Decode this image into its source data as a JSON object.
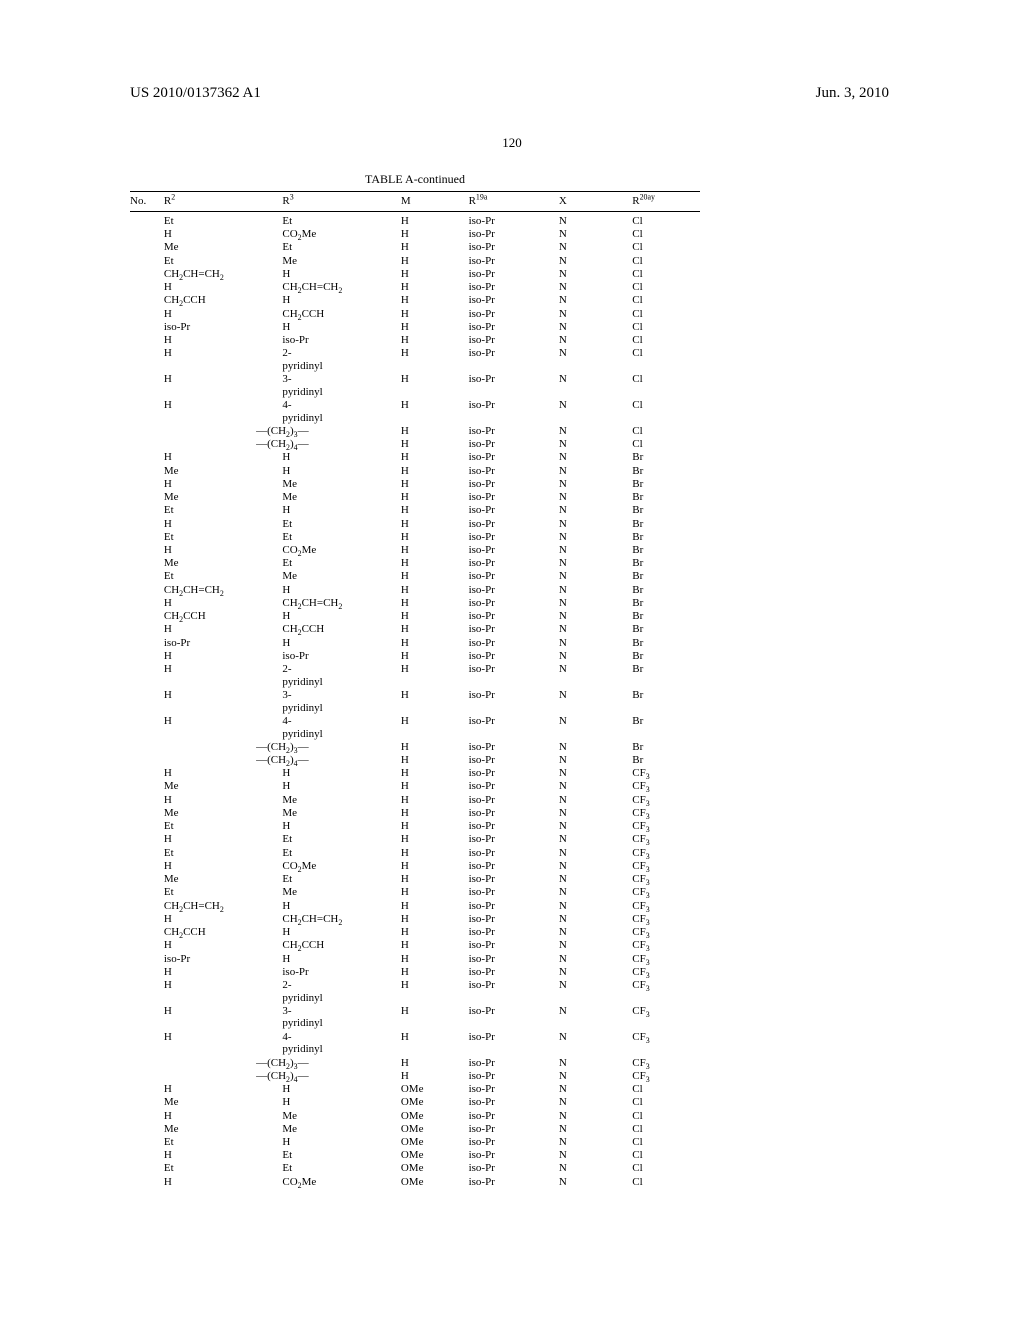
{
  "header": {
    "pub_id": "US 2010/0137362 A1",
    "pub_date": "Jun. 3, 2010",
    "page_number": "120"
  },
  "table": {
    "title": "TABLE A-continued",
    "columns": {
      "no": "No.",
      "r2": "R",
      "r2_sup": "2",
      "r3": "R",
      "r3_sup": "3",
      "m": "M",
      "r19_pre": "R",
      "r19_sup": "19a",
      "x": "X",
      "r20_pre": "R",
      "r20_sup": "20ay"
    },
    "rows": [
      {
        "r2": "Et",
        "r3": "Et",
        "m": "H",
        "r19": "iso-Pr",
        "x": "N",
        "r20": "Cl"
      },
      {
        "r2": "H",
        "r3": "CO<sub>2</sub>Me",
        "m": "H",
        "r19": "iso-Pr",
        "x": "N",
        "r20": "Cl"
      },
      {
        "r2": "Me",
        "r3": "Et",
        "m": "H",
        "r19": "iso-Pr",
        "x": "N",
        "r20": "Cl"
      },
      {
        "r2": "Et",
        "r3": "Me",
        "m": "H",
        "r19": "iso-Pr",
        "x": "N",
        "r20": "Cl"
      },
      {
        "r2": "CH<sub>2</sub>CH&#61;CH<sub>2</sub>",
        "r3": "H",
        "m": "H",
        "r19": "iso-Pr",
        "x": "N",
        "r20": "Cl"
      },
      {
        "r2": "H",
        "r3": "CH<sub>2</sub>CH&#61;CH<sub>2</sub>",
        "m": "H",
        "r19": "iso-Pr",
        "x": "N",
        "r20": "Cl"
      },
      {
        "r2": "CH<sub>2</sub>CCH",
        "r3": "H",
        "m": "H",
        "r19": "iso-Pr",
        "x": "N",
        "r20": "Cl"
      },
      {
        "r2": "H",
        "r3": "CH<sub>2</sub>CCH",
        "m": "H",
        "r19": "iso-Pr",
        "x": "N",
        "r20": "Cl"
      },
      {
        "r2": "iso-Pr",
        "r3": "H",
        "m": "H",
        "r19": "iso-Pr",
        "x": "N",
        "r20": "Cl"
      },
      {
        "r2": "H",
        "r3": "iso-Pr",
        "m": "H",
        "r19": "iso-Pr",
        "x": "N",
        "r20": "Cl"
      },
      {
        "r2": "H",
        "r3": "2-<br>pyridinyl",
        "m": "H",
        "r19": "iso-Pr",
        "x": "N",
        "r20": "Cl"
      },
      {
        "r2": "H",
        "r3": "3-<br>pyridinyl",
        "m": "H",
        "r19": "iso-Pr",
        "x": "N",
        "r20": "Cl"
      },
      {
        "r2": "H",
        "r3": "4-<br>pyridinyl",
        "m": "H",
        "r19": "iso-Pr",
        "x": "N",
        "r20": "Cl"
      },
      {
        "span23": "&mdash;(CH<sub>2</sub>)<sub>3</sub>&mdash;",
        "m": "H",
        "r19": "iso-Pr",
        "x": "N",
        "r20": "Cl"
      },
      {
        "span23": "&mdash;(CH<sub>2</sub>)<sub>4</sub>&mdash;",
        "m": "H",
        "r19": "iso-Pr",
        "x": "N",
        "r20": "Cl"
      },
      {
        "r2": "H",
        "r3": "H",
        "m": "H",
        "r19": "iso-Pr",
        "x": "N",
        "r20": "Br"
      },
      {
        "r2": "Me",
        "r3": "H",
        "m": "H",
        "r19": "iso-Pr",
        "x": "N",
        "r20": "Br"
      },
      {
        "r2": "H",
        "r3": "Me",
        "m": "H",
        "r19": "iso-Pr",
        "x": "N",
        "r20": "Br"
      },
      {
        "r2": "Me",
        "r3": "Me",
        "m": "H",
        "r19": "iso-Pr",
        "x": "N",
        "r20": "Br"
      },
      {
        "r2": "Et",
        "r3": "H",
        "m": "H",
        "r19": "iso-Pr",
        "x": "N",
        "r20": "Br"
      },
      {
        "r2": "H",
        "r3": "Et",
        "m": "H",
        "r19": "iso-Pr",
        "x": "N",
        "r20": "Br"
      },
      {
        "r2": "Et",
        "r3": "Et",
        "m": "H",
        "r19": "iso-Pr",
        "x": "N",
        "r20": "Br"
      },
      {
        "r2": "H",
        "r3": "CO<sub>2</sub>Me",
        "m": "H",
        "r19": "iso-Pr",
        "x": "N",
        "r20": "Br"
      },
      {
        "r2": "Me",
        "r3": "Et",
        "m": "H",
        "r19": "iso-Pr",
        "x": "N",
        "r20": "Br"
      },
      {
        "r2": "Et",
        "r3": "Me",
        "m": "H",
        "r19": "iso-Pr",
        "x": "N",
        "r20": "Br"
      },
      {
        "r2": "CH<sub>2</sub>CH&#61;CH<sub>2</sub>",
        "r3": "H",
        "m": "H",
        "r19": "iso-Pr",
        "x": "N",
        "r20": "Br"
      },
      {
        "r2": "H",
        "r3": "CH<sub>2</sub>CH&#61;CH<sub>2</sub>",
        "m": "H",
        "r19": "iso-Pr",
        "x": "N",
        "r20": "Br"
      },
      {
        "r2": "CH<sub>2</sub>CCH",
        "r3": "H",
        "m": "H",
        "r19": "iso-Pr",
        "x": "N",
        "r20": "Br"
      },
      {
        "r2": "H",
        "r3": "CH<sub>2</sub>CCH",
        "m": "H",
        "r19": "iso-Pr",
        "x": "N",
        "r20": "Br"
      },
      {
        "r2": "iso-Pr",
        "r3": "H",
        "m": "H",
        "r19": "iso-Pr",
        "x": "N",
        "r20": "Br"
      },
      {
        "r2": "H",
        "r3": "iso-Pr",
        "m": "H",
        "r19": "iso-Pr",
        "x": "N",
        "r20": "Br"
      },
      {
        "r2": "H",
        "r3": "2-<br>pyridinyl",
        "m": "H",
        "r19": "iso-Pr",
        "x": "N",
        "r20": "Br"
      },
      {
        "r2": "H",
        "r3": "3-<br>pyridinyl",
        "m": "H",
        "r19": "iso-Pr",
        "x": "N",
        "r20": "Br"
      },
      {
        "r2": "H",
        "r3": "4-<br>pyridinyl",
        "m": "H",
        "r19": "iso-Pr",
        "x": "N",
        "r20": "Br"
      },
      {
        "span23": "&mdash;(CH<sub>2</sub>)<sub>3</sub>&mdash;",
        "m": "H",
        "r19": "iso-Pr",
        "x": "N",
        "r20": "Br"
      },
      {
        "span23": "&mdash;(CH<sub>2</sub>)<sub>4</sub>&mdash;",
        "m": "H",
        "r19": "iso-Pr",
        "x": "N",
        "r20": "Br"
      },
      {
        "r2": "H",
        "r3": "H",
        "m": "H",
        "r19": "iso-Pr",
        "x": "N",
        "r20": "CF<sub>3</sub>"
      },
      {
        "r2": "Me",
        "r3": "H",
        "m": "H",
        "r19": "iso-Pr",
        "x": "N",
        "r20": "CF<sub>3</sub>"
      },
      {
        "r2": "H",
        "r3": "Me",
        "m": "H",
        "r19": "iso-Pr",
        "x": "N",
        "r20": "CF<sub>3</sub>"
      },
      {
        "r2": "Me",
        "r3": "Me",
        "m": "H",
        "r19": "iso-Pr",
        "x": "N",
        "r20": "CF<sub>3</sub>"
      },
      {
        "r2": "Et",
        "r3": "H",
        "m": "H",
        "r19": "iso-Pr",
        "x": "N",
        "r20": "CF<sub>3</sub>"
      },
      {
        "r2": "H",
        "r3": "Et",
        "m": "H",
        "r19": "iso-Pr",
        "x": "N",
        "r20": "CF<sub>3</sub>"
      },
      {
        "r2": "Et",
        "r3": "Et",
        "m": "H",
        "r19": "iso-Pr",
        "x": "N",
        "r20": "CF<sub>3</sub>"
      },
      {
        "r2": "H",
        "r3": "CO<sub>2</sub>Me",
        "m": "H",
        "r19": "iso-Pr",
        "x": "N",
        "r20": "CF<sub>3</sub>"
      },
      {
        "r2": "Me",
        "r3": "Et",
        "m": "H",
        "r19": "iso-Pr",
        "x": "N",
        "r20": "CF<sub>3</sub>"
      },
      {
        "r2": "Et",
        "r3": "Me",
        "m": "H",
        "r19": "iso-Pr",
        "x": "N",
        "r20": "CF<sub>3</sub>"
      },
      {
        "r2": "CH<sub>2</sub>CH&#61;CH<sub>2</sub>",
        "r3": "H",
        "m": "H",
        "r19": "iso-Pr",
        "x": "N",
        "r20": "CF<sub>3</sub>"
      },
      {
        "r2": "H",
        "r3": "CH<sub>2</sub>CH&#61;CH<sub>2</sub>",
        "m": "H",
        "r19": "iso-Pr",
        "x": "N",
        "r20": "CF<sub>3</sub>"
      },
      {
        "r2": "CH<sub>2</sub>CCH",
        "r3": "H",
        "m": "H",
        "r19": "iso-Pr",
        "x": "N",
        "r20": "CF<sub>3</sub>"
      },
      {
        "r2": "H",
        "r3": "CH<sub>2</sub>CCH",
        "m": "H",
        "r19": "iso-Pr",
        "x": "N",
        "r20": "CF<sub>3</sub>"
      },
      {
        "r2": "iso-Pr",
        "r3": "H",
        "m": "H",
        "r19": "iso-Pr",
        "x": "N",
        "r20": "CF<sub>3</sub>"
      },
      {
        "r2": "H",
        "r3": "iso-Pr",
        "m": "H",
        "r19": "iso-Pr",
        "x": "N",
        "r20": "CF<sub>3</sub>"
      },
      {
        "r2": "H",
        "r3": "2-<br>pyridinyl",
        "m": "H",
        "r19": "iso-Pr",
        "x": "N",
        "r20": "CF<sub>3</sub>"
      },
      {
        "r2": "H",
        "r3": "3-<br>pyridinyl",
        "m": "H",
        "r19": "iso-Pr",
        "x": "N",
        "r20": "CF<sub>3</sub>"
      },
      {
        "r2": "H",
        "r3": "4-<br>pyridinyl",
        "m": "H",
        "r19": "iso-Pr",
        "x": "N",
        "r20": "CF<sub>3</sub>"
      },
      {
        "span23": "&mdash;(CH<sub>2</sub>)<sub>3</sub>&mdash;",
        "m": "H",
        "r19": "iso-Pr",
        "x": "N",
        "r20": "CF<sub>3</sub>"
      },
      {
        "span23": "&mdash;(CH<sub>2</sub>)<sub>4</sub>&mdash;",
        "m": "H",
        "r19": "iso-Pr",
        "x": "N",
        "r20": "CF<sub>3</sub>"
      },
      {
        "r2": "H",
        "r3": "H",
        "m": "OMe",
        "r19": "iso-Pr",
        "x": "N",
        "r20": "Cl"
      },
      {
        "r2": "Me",
        "r3": "H",
        "m": "OMe",
        "r19": "iso-Pr",
        "x": "N",
        "r20": "Cl"
      },
      {
        "r2": "H",
        "r3": "Me",
        "m": "OMe",
        "r19": "iso-Pr",
        "x": "N",
        "r20": "Cl"
      },
      {
        "r2": "Me",
        "r3": "Me",
        "m": "OMe",
        "r19": "iso-Pr",
        "x": "N",
        "r20": "Cl"
      },
      {
        "r2": "Et",
        "r3": "H",
        "m": "OMe",
        "r19": "iso-Pr",
        "x": "N",
        "r20": "Cl"
      },
      {
        "r2": "H",
        "r3": "Et",
        "m": "OMe",
        "r19": "iso-Pr",
        "x": "N",
        "r20": "Cl"
      },
      {
        "r2": "Et",
        "r3": "Et",
        "m": "OMe",
        "r19": "iso-Pr",
        "x": "N",
        "r20": "Cl"
      },
      {
        "r2": "H",
        "r3": "CO<sub>2</sub>Me",
        "m": "OMe",
        "r19": "iso-Pr",
        "x": "N",
        "r20": "Cl"
      }
    ]
  }
}
